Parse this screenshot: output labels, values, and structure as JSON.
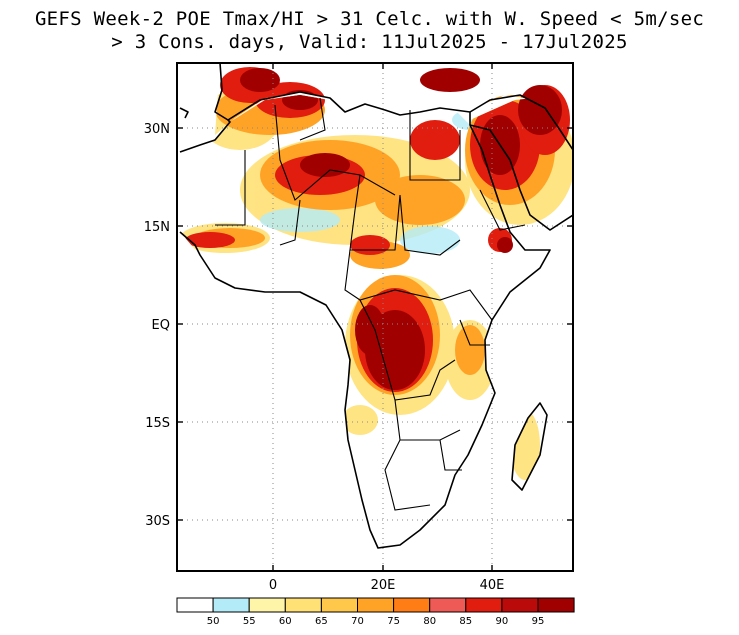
{
  "title": {
    "line1": "GEFS Week-2 POE Tmax/HI > 31 Celc. with W. Speed < 5m/sec",
    "line2": "> 3 Cons. days, Valid: 11Jul2025 - 17Jul2025"
  },
  "map": {
    "region": "Africa",
    "lat_range": [
      -40,
      40
    ],
    "lon_range": [
      -18,
      55
    ],
    "lat_ticks": [
      "30N",
      "15N",
      "EQ",
      "15S",
      "30S"
    ],
    "lon_ticks": [
      "0",
      "20E",
      "40E"
    ]
  },
  "legend": {
    "labels": [
      "50",
      "55",
      "60",
      "65",
      "70",
      "75",
      "80",
      "85",
      "90",
      "95"
    ],
    "colors": [
      "#ffffff",
      "#b4ebf8",
      "#fff5a8",
      "#ffe176",
      "#ffc84a",
      "#ffa327",
      "#ff7d14",
      "#ee5b56",
      "#e01d0e",
      "#bb0a0a",
      "#a00000"
    ]
  }
}
